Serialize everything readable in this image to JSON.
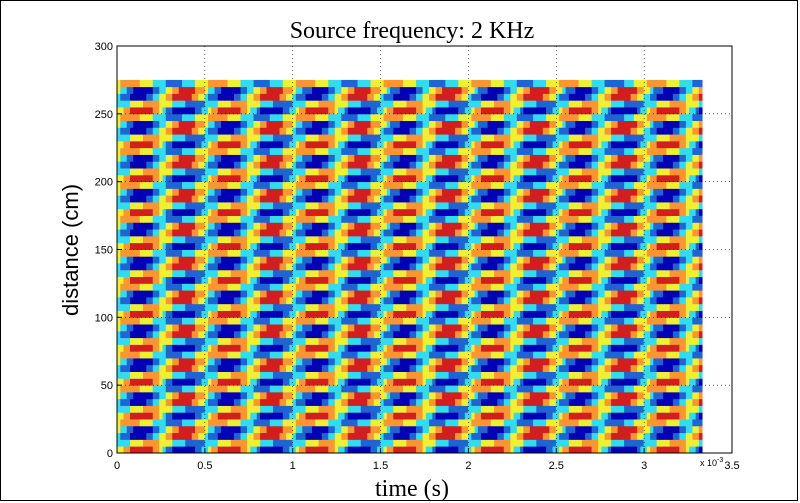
{
  "chart_data": {
    "type": "heatmap",
    "title": "Source frequency: 2 KHz",
    "xlabel": "time (s)",
    "ylabel": "distance (cm)",
    "x_exponent_base": "x 10",
    "x_exponent_power": "-3",
    "xlim": [
      0,
      3.5
    ],
    "ylim": [
      0,
      300
    ],
    "x_ticks": [
      "0",
      "0.5",
      "1",
      "1.5",
      "2",
      "2.5",
      "3",
      "3.5"
    ],
    "y_ticks": [
      "0",
      "50",
      "100",
      "150",
      "200",
      "250",
      "300"
    ],
    "grid": true,
    "data_extent": {
      "x": [
        0,
        3.33
      ],
      "y": [
        0,
        275
      ]
    },
    "source_frequency_khz": 2,
    "colormap": [
      "#0000b4",
      "#1e64d2",
      "#32dcf0",
      "#f0f032",
      "#fa9632",
      "#d21e1e"
    ]
  }
}
